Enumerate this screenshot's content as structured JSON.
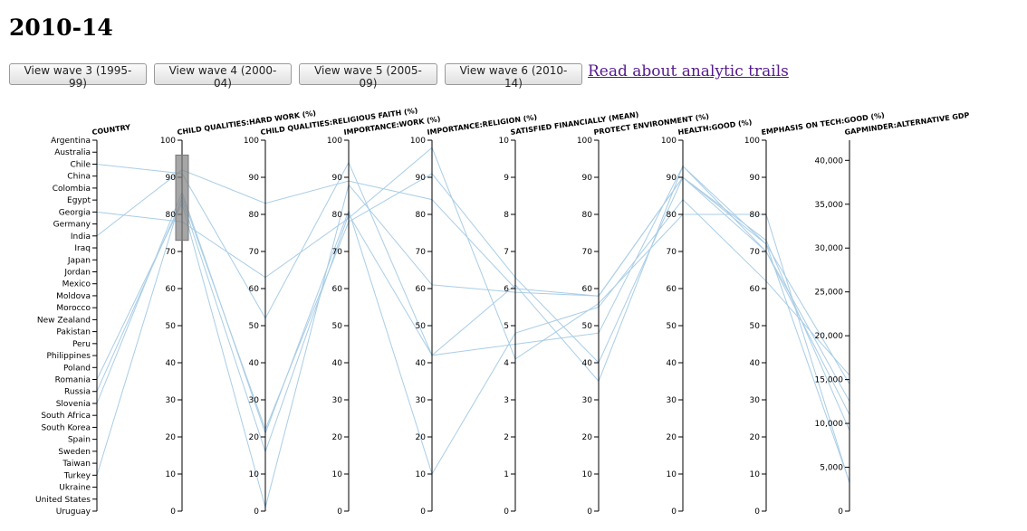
{
  "page": {
    "title": "2010-14"
  },
  "buttons": [
    {
      "label": "View wave 3 (1995-99)"
    },
    {
      "label": "View wave 4 (2000-04)"
    },
    {
      "label": "View wave 5 (2005-09)"
    },
    {
      "label": "View wave 6 (2010-14)"
    }
  ],
  "link": {
    "label": "Read about analytic trails"
  },
  "chart_data": {
    "type": "parallel-coordinates",
    "countries": [
      "Argentina",
      "Australia",
      "Chile",
      "China",
      "Colombia",
      "Egypt",
      "Georgia",
      "Germany",
      "India",
      "Iraq",
      "Japan",
      "Jordan",
      "Mexico",
      "Moldova",
      "Morocco",
      "New Zealand",
      "Pakistan",
      "Peru",
      "Philippines",
      "Poland",
      "Romania",
      "Russia",
      "Slovenia",
      "South Africa",
      "South Korea",
      "Spain",
      "Sweden",
      "Taiwan",
      "Turkey",
      "Ukraine",
      "United States",
      "Uruguay"
    ],
    "axes": [
      {
        "name": "COUNTRY",
        "kind": "categorical"
      },
      {
        "name": "CHILD QUALITIES:HARD WORK (%)",
        "domain": [
          0,
          100
        ],
        "ticks": [
          0,
          10,
          20,
          30,
          40,
          50,
          60,
          70,
          80,
          90,
          100
        ]
      },
      {
        "name": "CHILD QUALITIES:RELIGIOUS FAITH (%)",
        "domain": [
          0,
          100
        ],
        "ticks": [
          0,
          10,
          20,
          30,
          40,
          50,
          60,
          70,
          80,
          90,
          100
        ]
      },
      {
        "name": "IMPORTANCE:WORK (%)",
        "domain": [
          0,
          100
        ],
        "ticks": [
          0,
          10,
          20,
          30,
          40,
          50,
          60,
          70,
          80,
          90,
          100
        ]
      },
      {
        "name": "IMPORTANCE:RELIGION (%)",
        "domain": [
          0,
          100
        ],
        "ticks": [
          0,
          10,
          20,
          30,
          40,
          50,
          60,
          70,
          80,
          90,
          100
        ]
      },
      {
        "name": "SATISFIED FINANCIALLY (MEAN)",
        "domain": [
          0,
          10
        ],
        "ticks": [
          0,
          1,
          2,
          3,
          4,
          5,
          6,
          7,
          8,
          9,
          10
        ]
      },
      {
        "name": "PROTECT ENVIRONMENT (%)",
        "domain": [
          0,
          100
        ],
        "ticks": [
          0,
          10,
          20,
          30,
          40,
          50,
          60,
          70,
          80,
          90,
          100
        ]
      },
      {
        "name": "HEALTH:GOOD (%)",
        "domain": [
          0,
          100
        ],
        "ticks": [
          0,
          10,
          20,
          30,
          40,
          50,
          60,
          70,
          80,
          90,
          100
        ]
      },
      {
        "name": "EMPHASIS ON TECH:GOOD (%)",
        "domain": [
          0,
          100
        ],
        "ticks": [
          0,
          10,
          20,
          30,
          40,
          50,
          60,
          70,
          80,
          90,
          100
        ]
      },
      {
        "name": "GAPMINDER:ALTERNATIVE GDP",
        "domain": [
          0,
          42300
        ],
        "ticks": [
          0,
          5000,
          10000,
          15000,
          20000,
          25000,
          30000,
          35000,
          40000
        ]
      }
    ],
    "brush": {
      "axis": "CHILD QUALITIES:HARD WORK (%)",
      "range": [
        73,
        96
      ]
    },
    "series": [
      {
        "name": "Chile",
        "values": [
          "Chile",
          91,
          52,
          94,
          42,
          6.1,
          35,
          93,
          70,
          12500
        ]
      },
      {
        "name": "Georgia",
        "values": [
          "Georgia",
          78,
          63,
          79,
          98,
          4.1,
          56,
          80,
          80,
          3200
        ]
      },
      {
        "name": "India",
        "values": [
          "India",
          92,
          83,
          89,
          84,
          6.0,
          58,
          90,
          72,
          3300
        ]
      },
      {
        "name": "Romania",
        "values": [
          "Romania",
          83,
          1,
          88,
          61,
          5.9,
          58,
          90,
          70,
          11000
        ]
      },
      {
        "name": "Russia",
        "values": [
          "Russia",
          84,
          16,
          80,
          42,
          4.5,
          48,
          93,
          72,
          14500
        ]
      },
      {
        "name": "Turkey",
        "values": [
          "Turkey",
          85,
          22,
          78,
          91,
          6.3,
          40,
          90,
          73,
          9200
        ]
      },
      {
        "name": "Slovenia",
        "values": [
          "Slovenia",
          86,
          21,
          81,
          10,
          4.8,
          55,
          84,
          62,
          15500
        ]
      }
    ]
  }
}
